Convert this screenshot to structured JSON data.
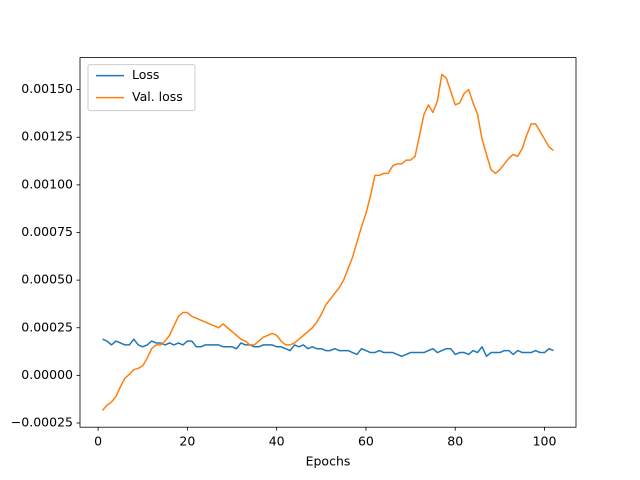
{
  "chart_data": {
    "type": "line",
    "x_label": "Epochs",
    "x": [
      1,
      2,
      3,
      4,
      5,
      6,
      7,
      8,
      9,
      10,
      11,
      12,
      13,
      14,
      15,
      16,
      17,
      18,
      19,
      20,
      21,
      22,
      23,
      24,
      25,
      26,
      27,
      28,
      29,
      30,
      31,
      32,
      33,
      34,
      35,
      36,
      37,
      38,
      39,
      40,
      41,
      42,
      43,
      44,
      45,
      46,
      47,
      48,
      49,
      50,
      51,
      52,
      53,
      54,
      55,
      56,
      57,
      58,
      59,
      60,
      61,
      62,
      63,
      64,
      65,
      66,
      67,
      68,
      69,
      70,
      71,
      72,
      73,
      74,
      75,
      76,
      77,
      78,
      79,
      80,
      81,
      82,
      83,
      84,
      85,
      86,
      87,
      88,
      89,
      90,
      91,
      92,
      93,
      94,
      95,
      96,
      97,
      98,
      99,
      100,
      101,
      102
    ],
    "series": [
      {
        "name": "Loss",
        "color": "#1f77b4",
        "values": [
          0.00019,
          0.00018,
          0.00016,
          0.00018,
          0.00017,
          0.00016,
          0.00016,
          0.00019,
          0.00016,
          0.00015,
          0.00016,
          0.00018,
          0.00017,
          0.00017,
          0.00016,
          0.00017,
          0.00016,
          0.00017,
          0.00016,
          0.00018,
          0.00018,
          0.00015,
          0.00015,
          0.00016,
          0.00016,
          0.00016,
          0.00016,
          0.00015,
          0.00015,
          0.00015,
          0.00014,
          0.00017,
          0.00016,
          0.00016,
          0.00015,
          0.00015,
          0.00016,
          0.00016,
          0.00016,
          0.00015,
          0.00015,
          0.00014,
          0.00013,
          0.00016,
          0.00015,
          0.00016,
          0.00014,
          0.00015,
          0.00014,
          0.00014,
          0.00013,
          0.00013,
          0.00014,
          0.00013,
          0.00013,
          0.00013,
          0.00012,
          0.00011,
          0.00014,
          0.00013,
          0.00012,
          0.00012,
          0.00013,
          0.00012,
          0.00012,
          0.00012,
          0.00011,
          0.0001,
          0.00011,
          0.00012,
          0.00012,
          0.00012,
          0.00012,
          0.00013,
          0.00014,
          0.00012,
          0.00013,
          0.00014,
          0.00014,
          0.00011,
          0.00012,
          0.00012,
          0.00011,
          0.00013,
          0.00012,
          0.00015,
          0.0001,
          0.00012,
          0.00012,
          0.00012,
          0.00013,
          0.00013,
          0.00011,
          0.00013,
          0.00012,
          0.00012,
          0.00012,
          0.00013,
          0.00012,
          0.00012,
          0.00014,
          0.00013
        ]
      },
      {
        "name": "Val. loss",
        "color": "#ff7f0e",
        "values": [
          -0.000184,
          -0.000157,
          -0.00014,
          -0.00011,
          -6e-05,
          -1.5e-05,
          5e-06,
          3e-05,
          3.7e-05,
          5e-05,
          9e-05,
          0.00014,
          0.00016,
          0.00016,
          0.00018,
          0.00021,
          0.00026,
          0.00031,
          0.00033,
          0.00033,
          0.00031,
          0.0003,
          0.00029,
          0.00028,
          0.00027,
          0.00026,
          0.00025,
          0.00027,
          0.00025,
          0.00023,
          0.00021,
          0.00019,
          0.00018,
          0.00016,
          0.00016,
          0.00018,
          0.0002,
          0.00021,
          0.00022,
          0.00021,
          0.00018,
          0.00016,
          0.00016,
          0.00017,
          0.00019,
          0.00021,
          0.00023,
          0.00025,
          0.00028,
          0.00032,
          0.00037,
          0.0004,
          0.00043,
          0.00046,
          0.0005,
          0.00056,
          0.00062,
          0.0007,
          0.00078,
          0.00085,
          0.00094,
          0.00105,
          0.00105,
          0.00106,
          0.00106,
          0.0011,
          0.00111,
          0.00111,
          0.00113,
          0.00113,
          0.00115,
          0.00126,
          0.00137,
          0.00142,
          0.00138,
          0.00144,
          0.00158,
          0.00156,
          0.00149,
          0.00142,
          0.00143,
          0.00148,
          0.0015,
          0.00143,
          0.00137,
          0.00124,
          0.00116,
          0.00108,
          0.00106,
          0.00108,
          0.00111,
          0.00114,
          0.00116,
          0.00115,
          0.00119,
          0.00126,
          0.00132,
          0.00132,
          0.00128,
          0.00124,
          0.0012,
          0.00118
        ]
      }
    ],
    "xlim": [
      -4.05,
      107.05
    ],
    "xticks": [
      0,
      20,
      40,
      60,
      80,
      100
    ],
    "ylim": [
      -0.000272,
      0.001668
    ],
    "yticks": [
      {
        "value": -0.00025,
        "label": "−0.00025"
      },
      {
        "value": 0,
        "label": "0.00000"
      },
      {
        "value": 0.00025,
        "label": "0.00025"
      },
      {
        "value": 0.0005,
        "label": "0.00050"
      },
      {
        "value": 0.00075,
        "label": "0.00075"
      },
      {
        "value": 0.001,
        "label": "0.00100"
      },
      {
        "value": 0.00125,
        "label": "0.00125"
      },
      {
        "value": 0.0015,
        "label": "0.00150"
      }
    ],
    "legend": "upper left"
  }
}
